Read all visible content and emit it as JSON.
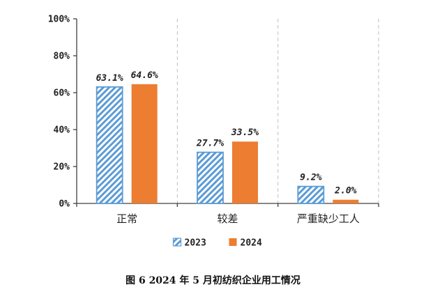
{
  "chart_data": {
    "type": "bar",
    "categories": [
      "正常",
      "较差",
      "严重缺少工人"
    ],
    "series": [
      {
        "name": "2023",
        "values": [
          63.1,
          27.7,
          9.2
        ],
        "labels": [
          "63.1%",
          "27.7%",
          "9.2%"
        ],
        "color": "#5b9bd5",
        "pattern": "diagonal-hatch"
      },
      {
        "name": "2024",
        "values": [
          64.6,
          33.5,
          2.0
        ],
        "labels": [
          "64.6%",
          "33.5%",
          "2.0%"
        ],
        "color": "#ed7d31",
        "pattern": "solid"
      }
    ],
    "yticks": [
      "0%",
      "20%",
      "40%",
      "60%",
      "80%",
      "100%"
    ],
    "ylim": [
      0,
      100
    ],
    "grid": "vertical dashed separators",
    "legend": "bottom-center"
  },
  "caption": "图 6   2024 年 5 月初纺织企业用工情况"
}
